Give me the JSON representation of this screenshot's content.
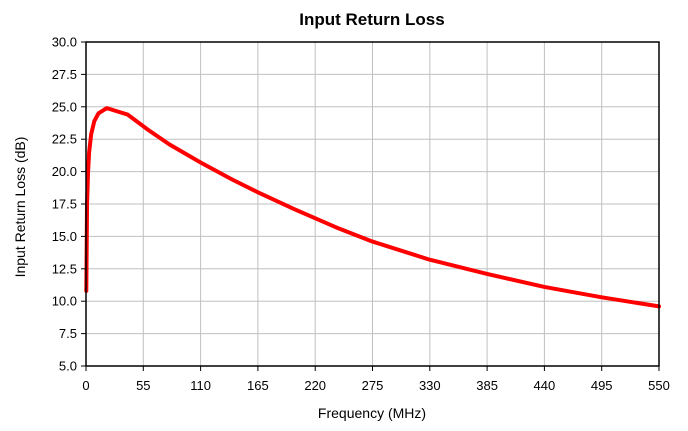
{
  "chart_data": {
    "type": "line",
    "title": "Input Return Loss",
    "xlabel": "Frequency (MHz)",
    "ylabel": "Input Return Loss (dB)",
    "xlim": [
      0,
      550
    ],
    "ylim": [
      5.0,
      30.0
    ],
    "x_ticks": [
      "0",
      "55",
      "110",
      "165",
      "220",
      "275",
      "330",
      "385",
      "440",
      "495",
      "550"
    ],
    "y_ticks": [
      "5.0",
      "7.5",
      "10.0",
      "12.5",
      "15.0",
      "17.5",
      "20.0",
      "22.5",
      "25.0",
      "27.5",
      "30.0"
    ],
    "grid": true,
    "legend": "none",
    "series": [
      {
        "color": "#ff0000",
        "x": [
          0.3,
          1,
          2,
          3,
          5,
          8,
          12,
          20,
          40,
          60,
          80,
          110,
          140,
          165,
          200,
          240,
          275,
          330,
          385,
          440,
          495,
          550
        ],
        "y": [
          10.8,
          17.5,
          20.0,
          21.5,
          22.9,
          23.9,
          24.5,
          24.9,
          24.4,
          23.2,
          22.1,
          20.7,
          19.4,
          18.4,
          17.1,
          15.7,
          14.6,
          13.2,
          12.1,
          11.1,
          10.3,
          9.6
        ]
      }
    ]
  }
}
